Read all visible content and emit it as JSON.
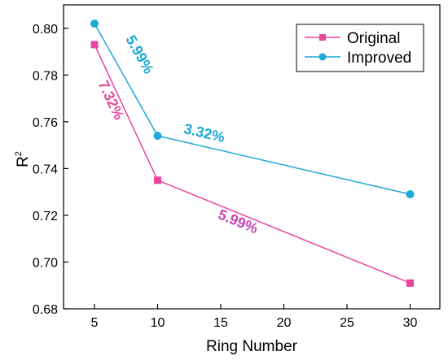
{
  "chart_data": {
    "type": "line",
    "xlabel": "Ring Number",
    "ylabel_base": "R",
    "ylabel_sup": "2",
    "categories": [
      "5",
      "10",
      "15",
      "20",
      "25",
      "30"
    ],
    "x": [
      5,
      10,
      30
    ],
    "ylim": [
      0.68,
      0.81
    ],
    "yticks": [
      "0.68",
      "0.70",
      "0.72",
      "0.74",
      "0.76",
      "0.78",
      "0.80"
    ],
    "legend_position": "top-right",
    "grid": false,
    "series": [
      {
        "name": "Original",
        "values": [
          0.793,
          0.735,
          0.691
        ],
        "color": "#e8459c",
        "marker": "square"
      },
      {
        "name": "Improved",
        "values": [
          0.802,
          0.754,
          0.729
        ],
        "color": "#1ca8d8",
        "marker": "circle"
      }
    ],
    "annotations": [
      {
        "text": "7.32%",
        "color": "#e8459c"
      },
      {
        "text": "5.99%",
        "color": "#1ca8d8"
      },
      {
        "text": "3.32%",
        "color": "#1ca8d8"
      },
      {
        "text": "5.99%",
        "color": "#c447b6"
      }
    ]
  }
}
